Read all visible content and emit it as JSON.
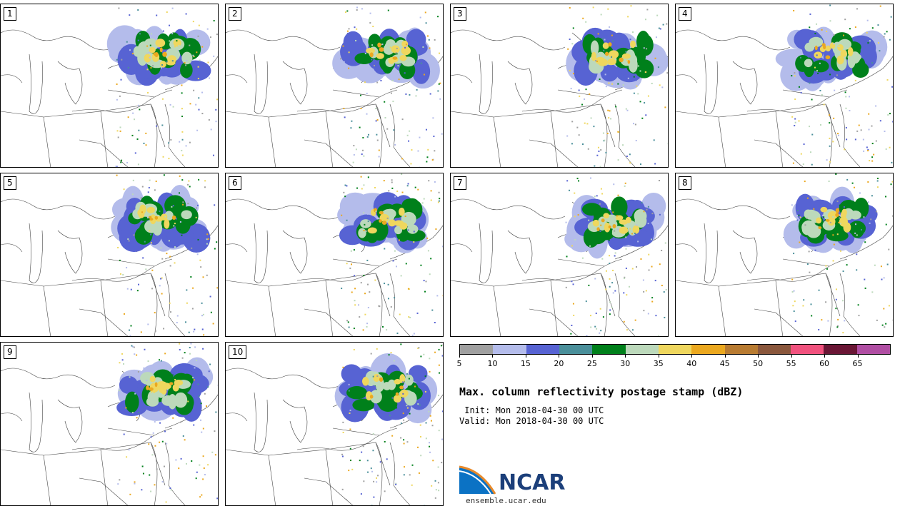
{
  "panels": [
    {
      "label": "1"
    },
    {
      "label": "2"
    },
    {
      "label": "3"
    },
    {
      "label": "4"
    },
    {
      "label": "5"
    },
    {
      "label": "6"
    },
    {
      "label": "7"
    },
    {
      "label": "8"
    },
    {
      "label": "9"
    },
    {
      "label": "10"
    }
  ],
  "colorbar": {
    "colors": [
      "#a0a0a0",
      "#b4bceb",
      "#5763d3",
      "#4a8f9a",
      "#00801b",
      "#bcd9bb",
      "#efd75e",
      "#eba81f",
      "#b87b31",
      "#8a573c",
      "#f1527e",
      "#6a1635",
      "#b04ea3"
    ],
    "ticks": [
      "5",
      "10",
      "15",
      "20",
      "25",
      "30",
      "35",
      "40",
      "45",
      "50",
      "55",
      "60",
      "65"
    ],
    "range": [
      5,
      70
    ]
  },
  "title": "Max. column reflectivity postage stamp (dBZ)",
  "init": " Init: Mon 2018-04-30 00 UTC",
  "valid": "Valid: Mon 2018-04-30 00 UTC",
  "logo": {
    "text": "NCAR",
    "site": "ensemble.ucar.edu"
  }
}
